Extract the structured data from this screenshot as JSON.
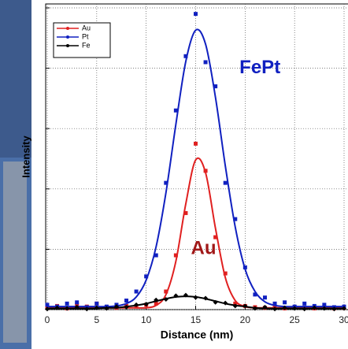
{
  "chart_data": {
    "type": "scatter",
    "xlabel": "Distance (nm)",
    "ylabel": "Intensity",
    "x": [
      0,
      1,
      2,
      3,
      4,
      5,
      6,
      7,
      8,
      9,
      10,
      11,
      12,
      13,
      14,
      15,
      16,
      17,
      18,
      19,
      20,
      21,
      22,
      23,
      24,
      25,
      26,
      27,
      28,
      29,
      30
    ],
    "xlim": [
      0,
      30
    ],
    "xticks": [
      0,
      5,
      10,
      15,
      20,
      25,
      30
    ],
    "ylim": [
      0,
      5
    ],
    "yticks": [
      0,
      1,
      2,
      3,
      4,
      5
    ],
    "grid": true,
    "legend": "upper left",
    "series": [
      {
        "name": "Au",
        "color": "#e02020",
        "values": [
          0.03,
          0.06,
          0.02,
          0.08,
          0.05,
          0.1,
          0.04,
          0.03,
          0.06,
          0.05,
          0.08,
          0.1,
          0.3,
          0.9,
          1.6,
          2.75,
          2.3,
          1.2,
          0.6,
          0.1,
          0.06,
          0.04,
          0.03,
          0.05,
          0.02,
          0.04,
          0.03,
          0.02,
          0.04,
          0.02,
          0.03
        ],
        "fit": [
          0.03,
          0.03,
          0.03,
          0.03,
          0.03,
          0.03,
          0.03,
          0.03,
          0.03,
          0.03,
          0.03,
          0.07,
          0.25,
          0.8,
          1.75,
          2.48,
          2.27,
          1.35,
          0.53,
          0.15,
          0.05,
          0.03,
          0.03,
          0.03,
          0.03,
          0.03,
          0.03,
          0.03,
          0.03,
          0.03,
          0.03
        ]
      },
      {
        "name": "Pt",
        "color": "#1020c0",
        "values": [
          0.08,
          0.05,
          0.1,
          0.12,
          0.04,
          0.1,
          0.05,
          0.08,
          0.15,
          0.3,
          0.55,
          0.9,
          2.1,
          3.3,
          4.2,
          4.9,
          4.1,
          3.7,
          2.1,
          1.5,
          0.7,
          0.25,
          0.2,
          0.1,
          0.12,
          0.05,
          0.1,
          0.06,
          0.08,
          0.04,
          0.05
        ],
        "fit": [
          0.05,
          0.05,
          0.05,
          0.05,
          0.05,
          0.05,
          0.05,
          0.06,
          0.1,
          0.21,
          0.49,
          1.04,
          1.94,
          3.07,
          4.11,
          4.63,
          4.4,
          3.52,
          2.38,
          1.37,
          0.67,
          0.3,
          0.13,
          0.07,
          0.05,
          0.05,
          0.05,
          0.05,
          0.05,
          0.05,
          0.05
        ]
      },
      {
        "name": "Fe",
        "color": "#000000",
        "values": [
          0.01,
          0.03,
          0.02,
          0.04,
          0.01,
          0.03,
          0.02,
          0.05,
          0.04,
          0.08,
          0.09,
          0.16,
          0.17,
          0.23,
          0.24,
          0.2,
          0.19,
          0.12,
          0.11,
          0.06,
          0.06,
          0.02,
          0.04,
          0.01,
          0.03,
          0.02,
          0.01,
          0.03,
          0.02,
          0.01,
          0.02
        ],
        "fit": [
          0.02,
          0.02,
          0.02,
          0.02,
          0.02,
          0.02,
          0.03,
          0.03,
          0.05,
          0.07,
          0.1,
          0.14,
          0.18,
          0.21,
          0.22,
          0.21,
          0.18,
          0.14,
          0.1,
          0.07,
          0.05,
          0.03,
          0.02,
          0.02,
          0.02,
          0.02,
          0.02,
          0.02,
          0.02,
          0.02,
          0.02
        ]
      }
    ],
    "annotations": [
      {
        "text": "FePt",
        "x": 21.5,
        "y": 4.0,
        "color": "#1020c0"
      },
      {
        "text": "Au",
        "x": 15.8,
        "y": 1.0,
        "color": "#a01818"
      }
    ]
  }
}
